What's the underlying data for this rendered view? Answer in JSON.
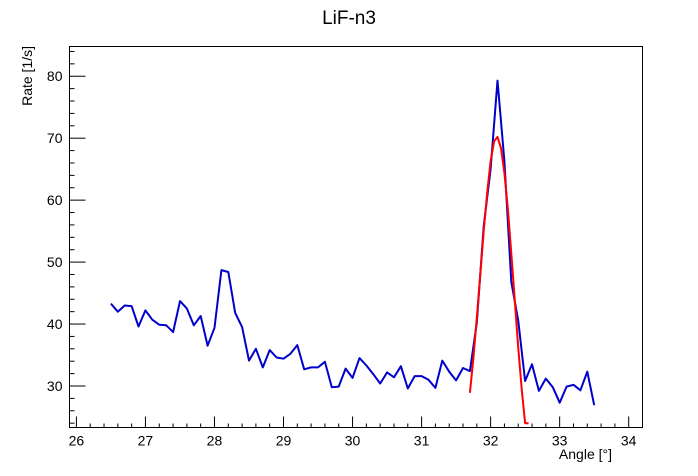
{
  "chart_data": {
    "type": "line",
    "title": "LiF-n3",
    "xlabel": "Angle [°]",
    "ylabel": "Rate [1/s]",
    "xlim": [
      25.9,
      34.2
    ],
    "ylim": [
      23.3,
      84.8
    ],
    "x_ticks": [
      "26",
      "27",
      "28",
      "29",
      "30",
      "31",
      "32",
      "33",
      "34"
    ],
    "y_ticks": [
      "30",
      "40",
      "50",
      "60",
      "70",
      "80"
    ],
    "grid": false,
    "legend": "none",
    "series": [
      {
        "color": "#0000cc",
        "x": [
          26.5,
          26.6,
          26.7,
          26.8,
          26.9,
          27.0,
          27.1,
          27.2,
          27.3,
          27.4,
          27.5,
          27.6,
          27.7,
          27.8,
          27.9,
          28.0,
          28.1,
          28.2,
          28.3,
          28.4,
          28.5,
          28.6,
          28.7,
          28.8,
          28.9,
          29.0,
          29.1,
          29.2,
          29.3,
          29.4,
          29.5,
          29.6,
          29.7,
          29.8,
          29.9,
          30.0,
          30.1,
          30.2,
          30.3,
          30.4,
          30.5,
          30.6,
          30.7,
          30.8,
          30.9,
          31.0,
          31.1,
          31.2,
          31.3,
          31.4,
          31.5,
          31.6,
          31.7,
          31.8,
          31.9,
          32.0,
          32.1,
          32.2,
          32.3,
          32.4,
          32.5,
          32.6,
          32.7,
          32.8,
          32.9,
          33.0,
          33.1,
          33.2,
          33.3,
          33.4,
          33.5
        ],
        "y": [
          43.3,
          42.0,
          43.0,
          42.9,
          39.6,
          42.2,
          40.7,
          39.9,
          39.8,
          38.7,
          43.7,
          42.5,
          39.8,
          41.3,
          36.5,
          39.4,
          48.7,
          48.4,
          41.8,
          39.5,
          34.1,
          36.0,
          33.0,
          35.8,
          34.6,
          34.4,
          35.2,
          36.6,
          32.7,
          33.0,
          33.0,
          33.9,
          29.8,
          29.9,
          32.8,
          31.3,
          34.5,
          33.3,
          31.9,
          30.4,
          32.2,
          31.4,
          33.2,
          29.6,
          31.6,
          31.6,
          31.0,
          29.7,
          34.1,
          32.3,
          30.9,
          32.9,
          32.4,
          40.2,
          55.8,
          65.0,
          79.3,
          66.3,
          46.8,
          40.6,
          30.8,
          33.5,
          29.2,
          31.2,
          29.8,
          27.3,
          29.9,
          30.2,
          29.3,
          32.3,
          26.9
        ]
      },
      {
        "color": "#ff0000",
        "x": [
          31.7,
          31.75,
          31.8,
          31.85,
          31.9,
          31.95,
          32.0,
          32.05,
          32.1,
          32.15,
          32.2,
          32.25,
          32.3,
          32.35,
          32.4,
          32.45,
          32.5,
          32.55
        ],
        "y": [
          28.9,
          34.5,
          41.0,
          48.0,
          55.0,
          61.2,
          66.3,
          69.5,
          70.2,
          68.4,
          64.4,
          58.5,
          51.4,
          43.8,
          36.3,
          29.5,
          24.0,
          24.0
        ]
      }
    ]
  }
}
